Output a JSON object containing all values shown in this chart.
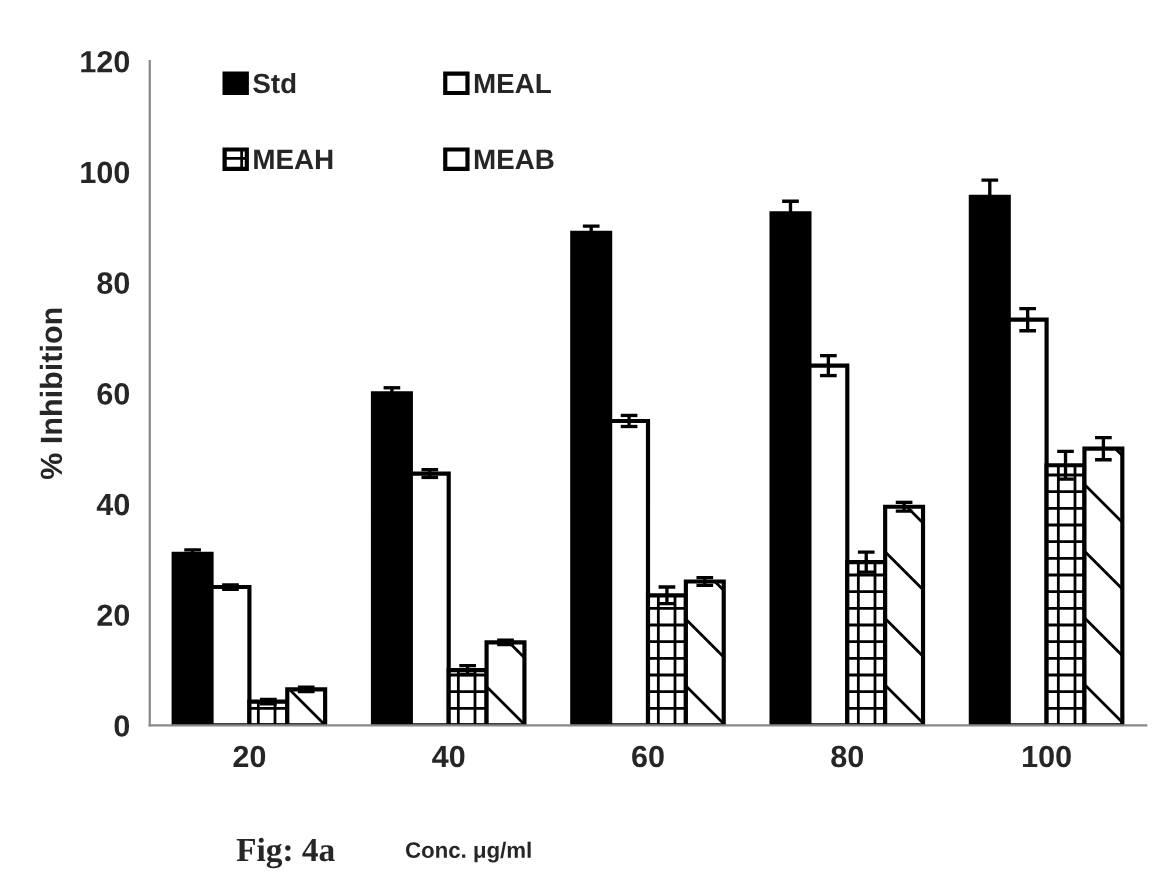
{
  "chart_data": {
    "type": "bar",
    "ylabel": "% Inhibition",
    "xlabel": "Conc. μg/ml",
    "annotations": [
      "Fig: 4a"
    ],
    "categories": [
      "20",
      "40",
      "60",
      "80",
      "100"
    ],
    "series": [
      {
        "name": "Std",
        "color": "#000000",
        "values": [
          31,
          60,
          89,
          92.5,
          95.5
        ],
        "errors": [
          0.7,
          1,
          1.2,
          2.2,
          3
        ]
      },
      {
        "name": "MEAL",
        "color": "#ffffff",
        "values": [
          25,
          45.5,
          55,
          65,
          73.3
        ],
        "errors": [
          0.4,
          0.7,
          1,
          1.8,
          2
        ]
      },
      {
        "name": "MEAH",
        "color": "#000000",
        "values": [
          4.3,
          10,
          23.5,
          29.5,
          47
        ],
        "errors": [
          0.4,
          0.8,
          1.5,
          1.8,
          2.5
        ]
      },
      {
        "name": "MEAB",
        "color": "#000000",
        "values": [
          6.5,
          15,
          26,
          39.5,
          50
        ],
        "errors": [
          0.4,
          0.4,
          0.7,
          0.8,
          2
        ]
      }
    ],
    "ylim": [
      0,
      120
    ],
    "yticks": [
      0,
      20,
      40,
      60,
      80,
      100,
      120
    ],
    "grid": false,
    "legend": "top left"
  }
}
